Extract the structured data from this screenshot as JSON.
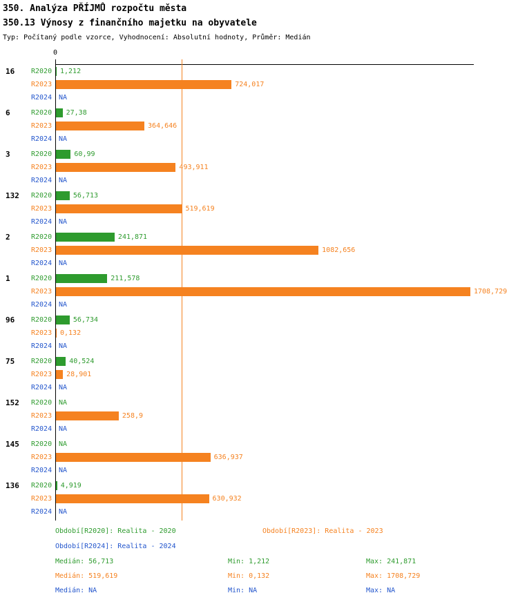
{
  "header": {
    "title": "350. Analýza PŘÍJMŮ rozpočtu města",
    "subtitle": "350.13 Výnosy z finančního majetku na obyvatele",
    "meta": "Typ: Počítaný podle vzorce, Vyhodnocení: Absolutní hodnoty, Průměr: Medián"
  },
  "chart_data": {
    "type": "bar",
    "orientation": "horizontal",
    "axis": {
      "zero_label": "0",
      "min": 0,
      "max": 1708.729
    },
    "series": [
      "R2020",
      "R2023",
      "R2024"
    ],
    "colors": {
      "R2020": "#2E9B2E",
      "R2023": "#F58220",
      "R2024": "#2255CC",
      "axis": "#000000"
    },
    "median_line": {
      "series": "R2023",
      "value": 519.619
    },
    "groups": [
      {
        "label": "16",
        "bars": [
          {
            "series": "R2020",
            "value": 1.212,
            "text": "1,212"
          },
          {
            "series": "R2023",
            "value": 724.017,
            "text": "724,017"
          },
          {
            "series": "R2024",
            "value": null,
            "text": "NA"
          }
        ]
      },
      {
        "label": "6",
        "bars": [
          {
            "series": "R2020",
            "value": 27.38,
            "text": "27,38"
          },
          {
            "series": "R2023",
            "value": 364.646,
            "text": "364,646"
          },
          {
            "series": "R2024",
            "value": null,
            "text": "NA"
          }
        ]
      },
      {
        "label": "3",
        "bars": [
          {
            "series": "R2020",
            "value": 60.99,
            "text": "60,99"
          },
          {
            "series": "R2023",
            "value": 493.911,
            "text": "493,911"
          },
          {
            "series": "R2024",
            "value": null,
            "text": "NA"
          }
        ]
      },
      {
        "label": "132",
        "bars": [
          {
            "series": "R2020",
            "value": 56.713,
            "text": "56,713"
          },
          {
            "series": "R2023",
            "value": 519.619,
            "text": "519,619"
          },
          {
            "series": "R2024",
            "value": null,
            "text": "NA"
          }
        ]
      },
      {
        "label": "2",
        "bars": [
          {
            "series": "R2020",
            "value": 241.871,
            "text": "241,871"
          },
          {
            "series": "R2023",
            "value": 1082.656,
            "text": "1082,656"
          },
          {
            "series": "R2024",
            "value": null,
            "text": "NA"
          }
        ]
      },
      {
        "label": "1",
        "bars": [
          {
            "series": "R2020",
            "value": 211.578,
            "text": "211,578"
          },
          {
            "series": "R2023",
            "value": 1708.729,
            "text": "1708,729"
          },
          {
            "series": "R2024",
            "value": null,
            "text": "NA"
          }
        ]
      },
      {
        "label": "96",
        "bars": [
          {
            "series": "R2020",
            "value": 56.734,
            "text": "56,734"
          },
          {
            "series": "R2023",
            "value": 0.132,
            "text": "0,132"
          },
          {
            "series": "R2024",
            "value": null,
            "text": "NA"
          }
        ]
      },
      {
        "label": "75",
        "bars": [
          {
            "series": "R2020",
            "value": 40.524,
            "text": "40,524"
          },
          {
            "series": "R2023",
            "value": 28.901,
            "text": "28,901"
          },
          {
            "series": "R2024",
            "value": null,
            "text": "NA"
          }
        ]
      },
      {
        "label": "152",
        "bars": [
          {
            "series": "R2020",
            "value": null,
            "text": "NA"
          },
          {
            "series": "R2023",
            "value": 258.9,
            "text": "258,9"
          },
          {
            "series": "R2024",
            "value": null,
            "text": "NA"
          }
        ]
      },
      {
        "label": "145",
        "bars": [
          {
            "series": "R2020",
            "value": null,
            "text": "NA"
          },
          {
            "series": "R2023",
            "value": 636.937,
            "text": "636,937"
          },
          {
            "series": "R2024",
            "value": null,
            "text": "NA"
          }
        ]
      },
      {
        "label": "136",
        "bars": [
          {
            "series": "R2020",
            "value": 4.919,
            "text": "4,919"
          },
          {
            "series": "R2023",
            "value": 630.932,
            "text": "630,932"
          },
          {
            "series": "R2024",
            "value": null,
            "text": "NA"
          }
        ]
      }
    ]
  },
  "legend": {
    "items": [
      {
        "series": "R2020",
        "label": "Období[R2020]:",
        "value": "Realita - 2020"
      },
      {
        "series": "R2023",
        "label": "Období[R2023]:",
        "value": "Realita - 2023"
      },
      {
        "series": "R2024",
        "label": "Období[R2024]:",
        "value": "Realita - 2024"
      }
    ]
  },
  "stats": {
    "labels": {
      "median": "Medián",
      "min": "Min",
      "max": "Max"
    },
    "rows": [
      {
        "series": "R2020",
        "median": "56,713",
        "min": "1,212",
        "max": "241,871"
      },
      {
        "series": "R2023",
        "median": "519,619",
        "min": "0,132",
        "max": "1708,729"
      },
      {
        "series": "R2024",
        "median": "NA",
        "min": "NA",
        "max": "NA"
      }
    ]
  }
}
